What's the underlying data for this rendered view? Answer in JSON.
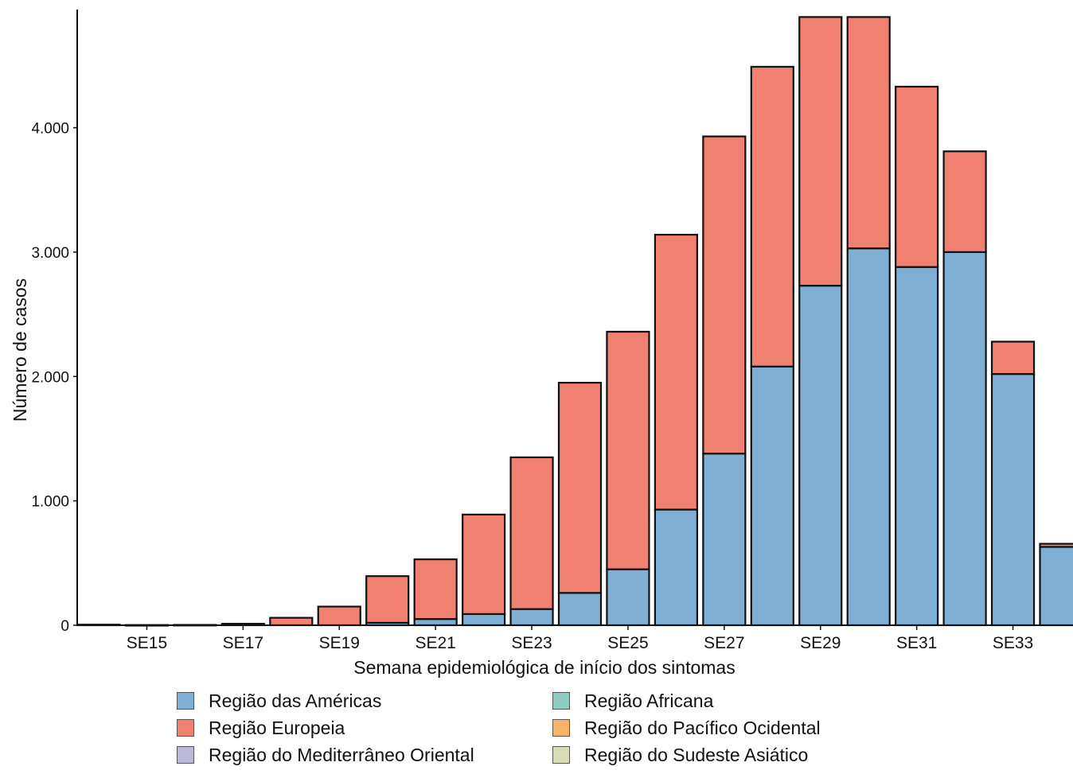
{
  "chart_data": {
    "type": "bar",
    "stacked": true,
    "xlabel": "Semana epidemiológica de início dos sintomas",
    "ylabel": "Número de casos",
    "categories": [
      "SE14",
      "SE15",
      "SE16",
      "SE17",
      "SE18",
      "SE19",
      "SE20",
      "SE21",
      "SE22",
      "SE23",
      "SE24",
      "SE25",
      "SE26",
      "SE27",
      "SE28",
      "SE29",
      "SE30",
      "SE31",
      "SE32",
      "SE33",
      "SE34"
    ],
    "x_tick_labels": [
      "SE15",
      "SE17",
      "SE19",
      "SE21",
      "SE23",
      "SE25",
      "SE27",
      "SE29",
      "SE31",
      "SE33"
    ],
    "y_ticks": [
      0,
      1000,
      2000,
      3000,
      4000
    ],
    "y_tick_labels": [
      "0",
      "1.000",
      "2.000",
      "3.000",
      "4.000"
    ],
    "ylim": [
      0,
      4950
    ],
    "series": [
      {
        "name": "Região das Américas",
        "color": "#7fafd4",
        "values": [
          0,
          0,
          0,
          0,
          0,
          0,
          20,
          50,
          90,
          130,
          260,
          450,
          930,
          1380,
          2080,
          2730,
          3030,
          2880,
          3000,
          2020,
          630
        ]
      },
      {
        "name": "Região Europeia",
        "color": "#f08070",
        "values": [
          5,
          2,
          3,
          12,
          60,
          150,
          375,
          480,
          800,
          1220,
          1690,
          1910,
          2210,
          2550,
          2410,
          2160,
          1860,
          1450,
          810,
          260,
          25
        ]
      },
      {
        "name": "Região do Mediterrâneo Oriental",
        "color": "#bcb8da",
        "values": [
          0,
          0,
          0,
          0,
          0,
          0,
          0,
          0,
          0,
          0,
          0,
          0,
          0,
          0,
          0,
          0,
          0,
          0,
          0,
          0,
          0
        ]
      },
      {
        "name": "Região Africana",
        "color": "#8ecdc0",
        "values": [
          0,
          0,
          0,
          0,
          0,
          0,
          0,
          0,
          0,
          0,
          0,
          0,
          0,
          0,
          0,
          0,
          0,
          0,
          0,
          0,
          0
        ]
      },
      {
        "name": "Região do Pacífico Ocidental",
        "color": "#f6b56b",
        "values": [
          0,
          0,
          0,
          0,
          0,
          0,
          0,
          0,
          0,
          0,
          0,
          0,
          0,
          0,
          0,
          0,
          0,
          0,
          0,
          0,
          0
        ]
      },
      {
        "name": "Região do Sudeste Asiático",
        "color": "#d9ddb4",
        "values": [
          0,
          0,
          0,
          0,
          0,
          0,
          0,
          0,
          0,
          0,
          0,
          0,
          0,
          0,
          0,
          0,
          0,
          0,
          0,
          0,
          0
        ]
      }
    ],
    "legend": {
      "position": "bottom",
      "items": [
        {
          "label": "Região das Américas",
          "color": "#7fafd4"
        },
        {
          "label": "Região Africana",
          "color": "#8ecdc0"
        },
        {
          "label": "Região Europeia",
          "color": "#f08070"
        },
        {
          "label": "Região do Pacífico Ocidental",
          "color": "#f6b56b"
        },
        {
          "label": "Região do Mediterrâneo Oriental",
          "color": "#bcb8da"
        },
        {
          "label": "Região do Sudeste Asiático",
          "color": "#d9ddb4"
        }
      ]
    },
    "grid": false
  }
}
